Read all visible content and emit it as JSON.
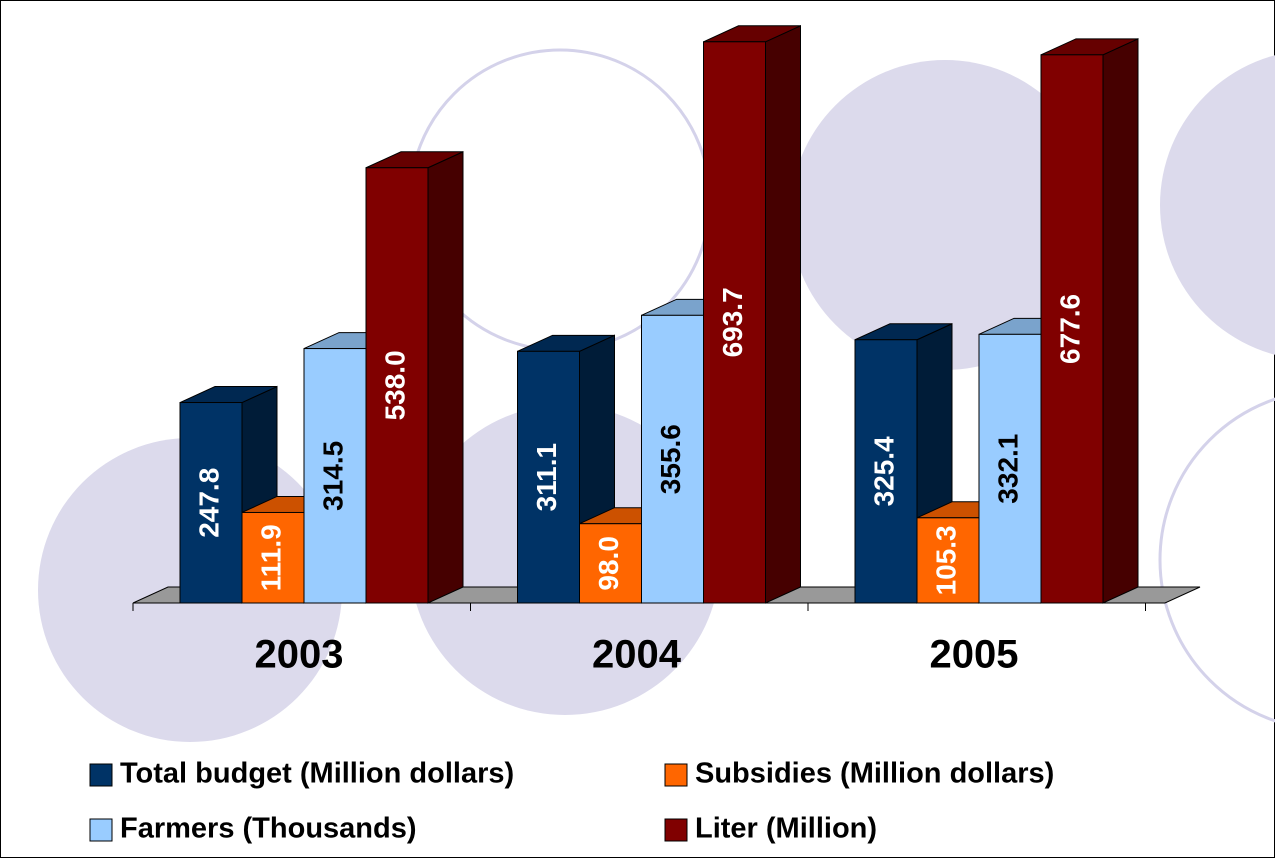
{
  "chart_data": {
    "type": "bar3d",
    "categories": [
      "2003",
      "2004",
      "2005"
    ],
    "series": [
      {
        "name": "Total budget (Million dollars)",
        "color": "#003366",
        "values": [
          247.8,
          311.1,
          325.4
        ],
        "value_labels": [
          "247.8",
          "311.1",
          "325.4"
        ]
      },
      {
        "name": "Subsidies (Million dollars)",
        "color": "#ff6600",
        "values": [
          111.9,
          98.0,
          105.3
        ],
        "value_labels": [
          "111.9",
          "98.0",
          "105.3"
        ]
      },
      {
        "name": "Farmers (Thousands)",
        "color": "#99ccff",
        "values": [
          314.5,
          355.6,
          332.1
        ],
        "value_labels": [
          "314.5",
          "355.6",
          "332.1"
        ]
      },
      {
        "name": "Liter (Million)",
        "color": "#800000",
        "values": [
          538.0,
          693.7,
          677.6
        ],
        "value_labels": [
          "538.0",
          "693.7",
          "677.6"
        ]
      }
    ]
  }
}
